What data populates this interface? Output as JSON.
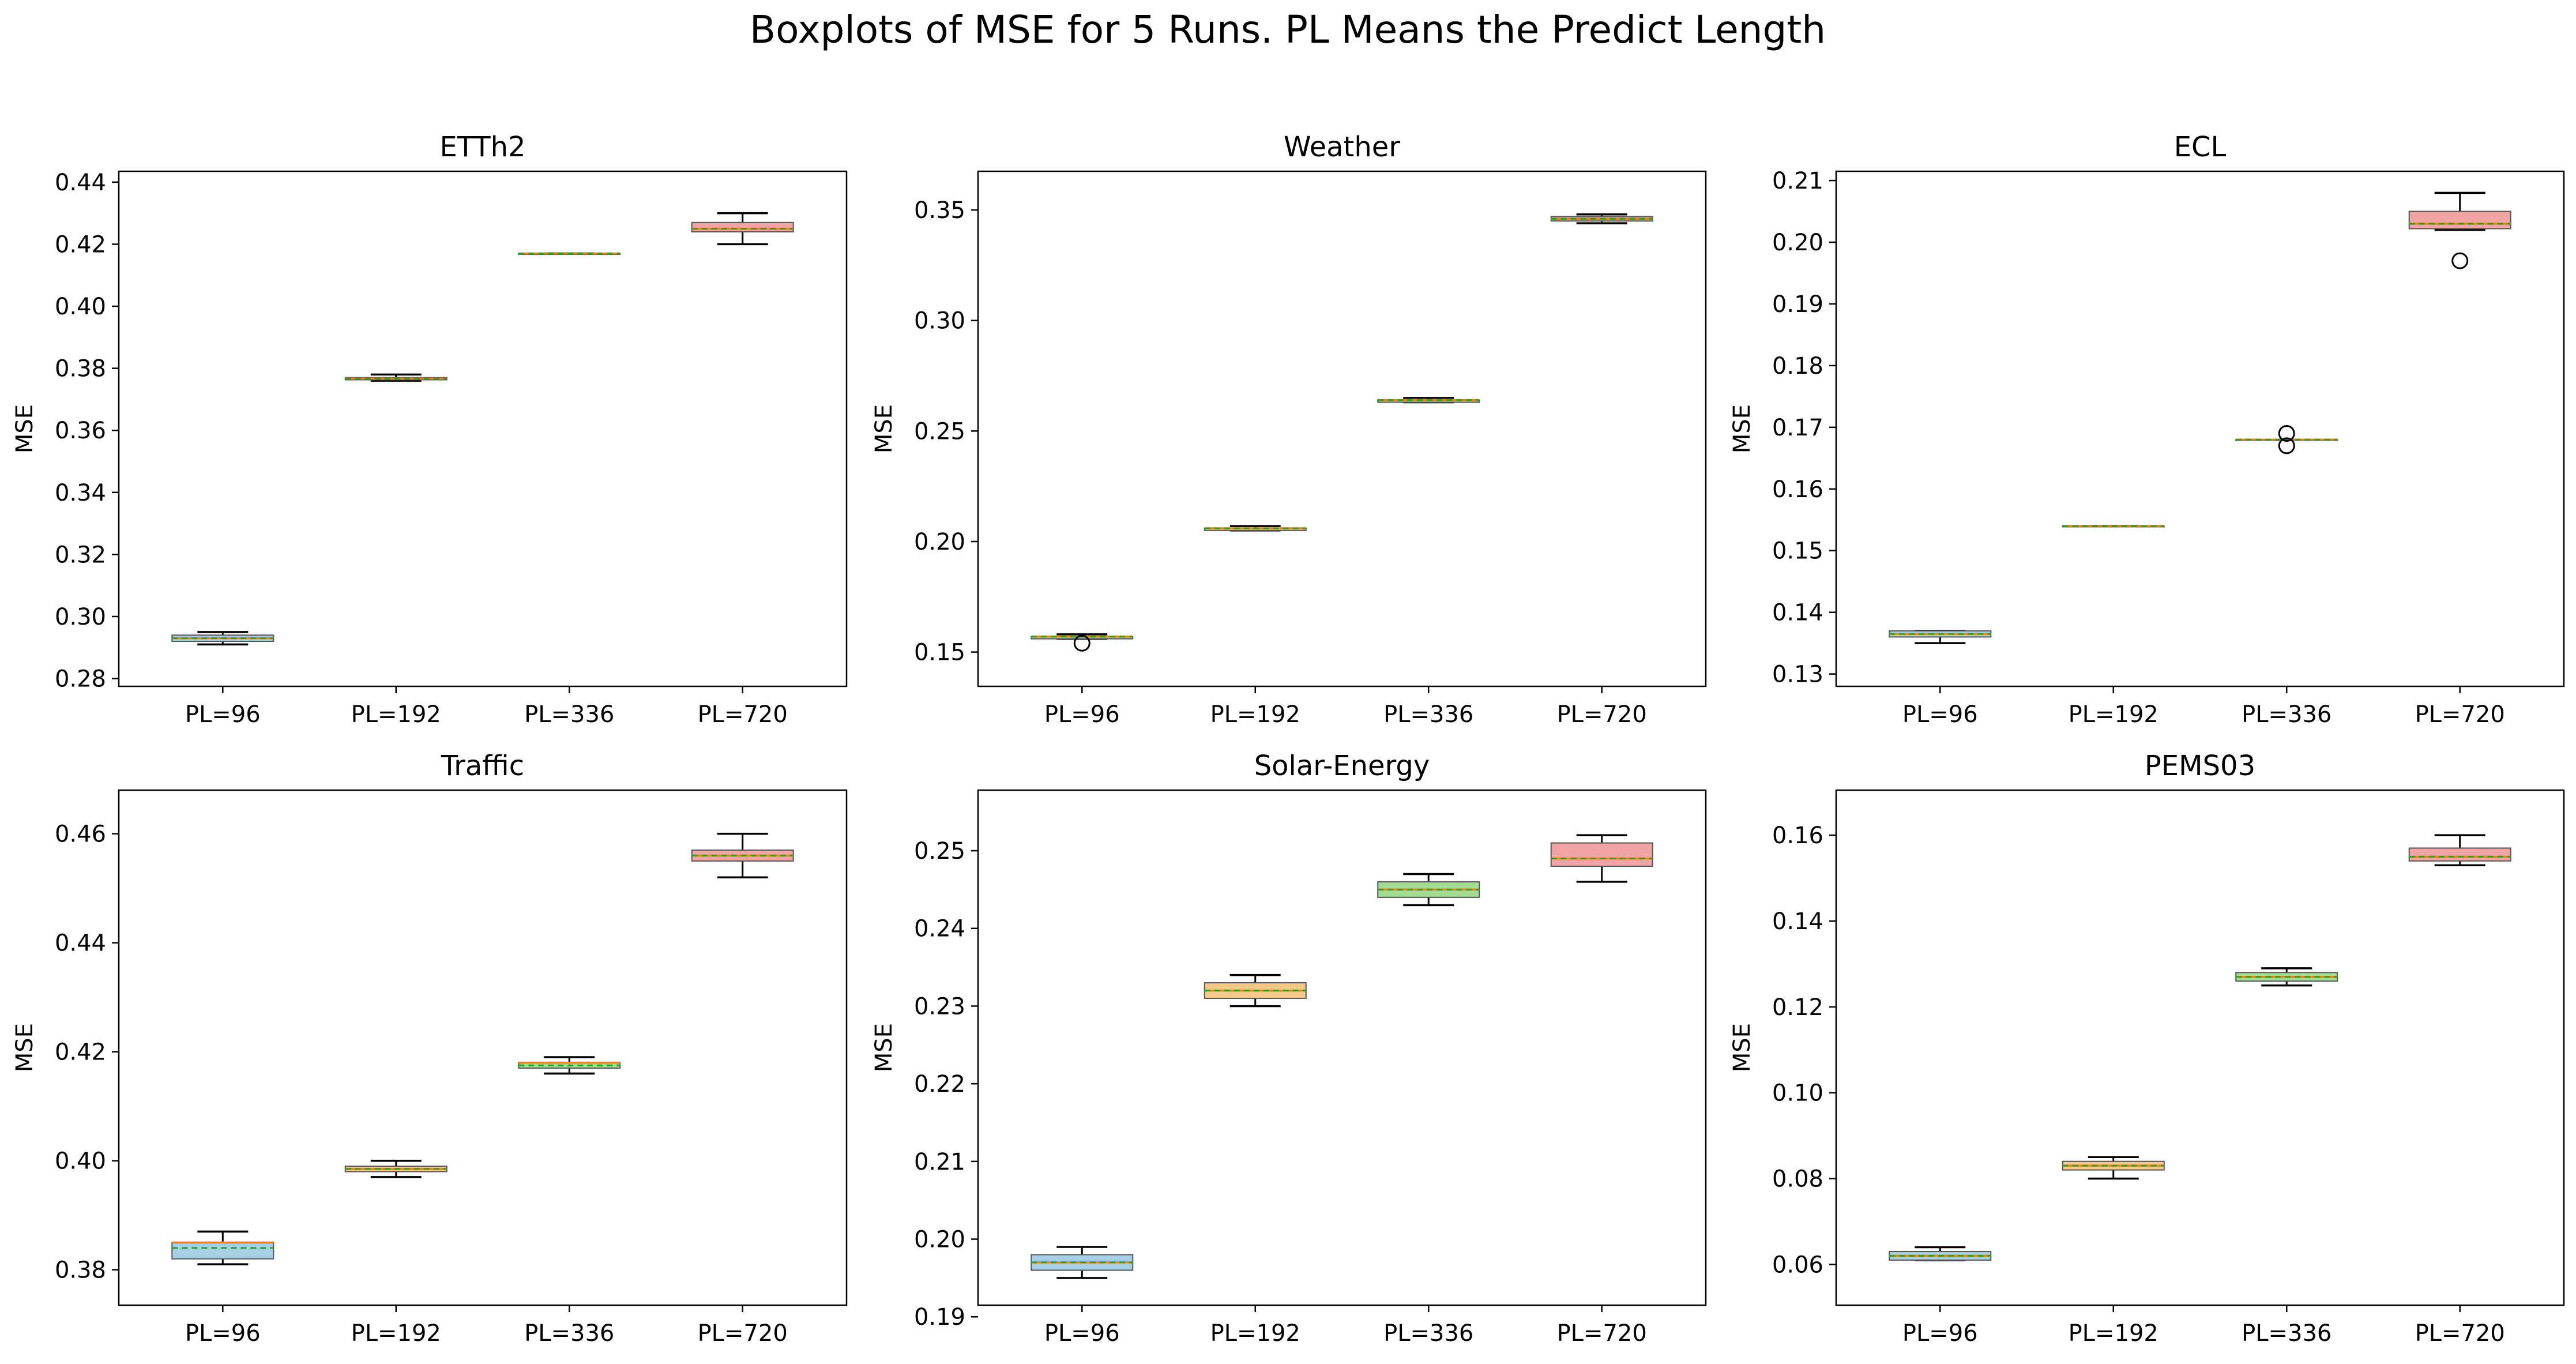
{
  "figure": {
    "title": "Boxplots of MSE for 5 Runs. PL Means the Predict Length"
  },
  "colors": {
    "box_fills": [
      "#a6d0e4",
      "#f5c98a",
      "#a3dc93",
      "#f2a3a3"
    ],
    "median_line": "#ff7f0e",
    "mean_line": "#2ca02c",
    "outlier": "#000000",
    "whisker": "#000000"
  },
  "chart_data": [
    {
      "type": "boxplot",
      "title": "ETTh2",
      "ylabel": "MSE",
      "categories": [
        "PL=96",
        "PL=192",
        "PL=336",
        "PL=720"
      ],
      "ylim": [
        0.2775,
        0.4435
      ],
      "yticks": [
        0.28,
        0.3,
        0.32,
        0.34,
        0.36,
        0.38,
        0.4,
        0.42,
        0.44
      ],
      "yticklabels": [
        "0.28",
        "0.30",
        "0.32",
        "0.34",
        "0.36",
        "0.38",
        "0.40",
        "0.42",
        "0.44"
      ],
      "boxes": [
        {
          "whislo": 0.291,
          "q1": 0.292,
          "med": 0.293,
          "mean": 0.293,
          "q3": 0.294,
          "whishi": 0.295,
          "fliers": []
        },
        {
          "whislo": 0.376,
          "q1": 0.3763,
          "med": 0.3767,
          "mean": 0.3767,
          "q3": 0.377,
          "whishi": 0.378,
          "fliers": []
        },
        {
          "whislo": 0.417,
          "q1": 0.417,
          "med": 0.417,
          "mean": 0.417,
          "q3": 0.417,
          "whishi": 0.417,
          "fliers": []
        },
        {
          "whislo": 0.42,
          "q1": 0.424,
          "med": 0.425,
          "mean": 0.425,
          "q3": 0.427,
          "whishi": 0.43,
          "fliers": []
        }
      ]
    },
    {
      "type": "boxplot",
      "title": "Weather",
      "ylabel": "MSE",
      "categories": [
        "PL=96",
        "PL=192",
        "PL=336",
        "PL=720"
      ],
      "ylim": [
        0.1345,
        0.3675
      ],
      "yticks": [
        0.15,
        0.2,
        0.25,
        0.3,
        0.35
      ],
      "yticklabels": [
        "0.15",
        "0.20",
        "0.25",
        "0.30",
        "0.35"
      ],
      "boxes": [
        {
          "whislo": 0.156,
          "q1": 0.156,
          "med": 0.157,
          "mean": 0.157,
          "q3": 0.157,
          "whishi": 0.158,
          "fliers": [
            0.154
          ]
        },
        {
          "whislo": 0.205,
          "q1": 0.205,
          "med": 0.206,
          "mean": 0.206,
          "q3": 0.206,
          "whishi": 0.207,
          "fliers": []
        },
        {
          "whislo": 0.263,
          "q1": 0.263,
          "med": 0.264,
          "mean": 0.264,
          "q3": 0.264,
          "whishi": 0.265,
          "fliers": []
        },
        {
          "whislo": 0.344,
          "q1": 0.345,
          "med": 0.346,
          "mean": 0.346,
          "q3": 0.347,
          "whishi": 0.348,
          "fliers": []
        }
      ]
    },
    {
      "type": "boxplot",
      "title": "ECL",
      "ylabel": "MSE",
      "categories": [
        "PL=96",
        "PL=192",
        "PL=336",
        "PL=720"
      ],
      "ylim": [
        0.128,
        0.2115
      ],
      "yticks": [
        0.13,
        0.14,
        0.15,
        0.16,
        0.17,
        0.18,
        0.19,
        0.2,
        0.21
      ],
      "yticklabels": [
        "0.13",
        "0.14",
        "0.15",
        "0.16",
        "0.17",
        "0.18",
        "0.19",
        "0.20",
        "0.21"
      ],
      "boxes": [
        {
          "whislo": 0.135,
          "q1": 0.136,
          "med": 0.1365,
          "mean": 0.1365,
          "q3": 0.137,
          "whishi": 0.137,
          "fliers": []
        },
        {
          "whislo": 0.154,
          "q1": 0.154,
          "med": 0.154,
          "mean": 0.154,
          "q3": 0.154,
          "whishi": 0.154,
          "fliers": []
        },
        {
          "whislo": 0.168,
          "q1": 0.168,
          "med": 0.168,
          "mean": 0.168,
          "q3": 0.168,
          "whishi": 0.168,
          "fliers": [
            0.169,
            0.167
          ]
        },
        {
          "whislo": 0.202,
          "q1": 0.2022,
          "med": 0.203,
          "mean": 0.203,
          "q3": 0.205,
          "whishi": 0.208,
          "fliers": [
            0.197
          ]
        }
      ]
    },
    {
      "type": "boxplot",
      "title": "Traffic",
      "ylabel": "MSE",
      "categories": [
        "PL=96",
        "PL=192",
        "PL=336",
        "PL=720"
      ],
      "ylim": [
        0.3735,
        0.468
      ],
      "yticks": [
        0.38,
        0.4,
        0.42,
        0.44,
        0.46
      ],
      "yticklabels": [
        "0.38",
        "0.40",
        "0.42",
        "0.44",
        "0.46"
      ],
      "boxes": [
        {
          "whislo": 0.381,
          "q1": 0.382,
          "med": 0.385,
          "mean": 0.384,
          "q3": 0.385,
          "whishi": 0.387,
          "fliers": []
        },
        {
          "whislo": 0.397,
          "q1": 0.398,
          "med": 0.3985,
          "mean": 0.3985,
          "q3": 0.399,
          "whishi": 0.4,
          "fliers": []
        },
        {
          "whislo": 0.416,
          "q1": 0.417,
          "med": 0.418,
          "mean": 0.4175,
          "q3": 0.418,
          "whishi": 0.419,
          "fliers": []
        },
        {
          "whislo": 0.452,
          "q1": 0.455,
          "med": 0.456,
          "mean": 0.456,
          "q3": 0.457,
          "whishi": 0.46,
          "fliers": []
        }
      ]
    },
    {
      "type": "boxplot",
      "title": "Solar-Energy",
      "ylabel": "MSE",
      "categories": [
        "PL=96",
        "PL=192",
        "PL=336",
        "PL=720"
      ],
      "ylim": [
        0.1915,
        0.2578
      ],
      "yticks": [
        0.19,
        0.2,
        0.21,
        0.22,
        0.23,
        0.24,
        0.25
      ],
      "yticklabels": [
        "0.19",
        "0.20",
        "0.21",
        "0.22",
        "0.23",
        "0.24",
        "0.25"
      ],
      "boxes": [
        {
          "whislo": 0.195,
          "q1": 0.196,
          "med": 0.197,
          "mean": 0.197,
          "q3": 0.198,
          "whishi": 0.199,
          "fliers": []
        },
        {
          "whislo": 0.23,
          "q1": 0.231,
          "med": 0.232,
          "mean": 0.232,
          "q3": 0.233,
          "whishi": 0.234,
          "fliers": []
        },
        {
          "whislo": 0.243,
          "q1": 0.244,
          "med": 0.245,
          "mean": 0.245,
          "q3": 0.246,
          "whishi": 0.247,
          "fliers": []
        },
        {
          "whislo": 0.246,
          "q1": 0.248,
          "med": 0.249,
          "mean": 0.249,
          "q3": 0.251,
          "whishi": 0.252,
          "fliers": []
        }
      ]
    },
    {
      "type": "boxplot",
      "title": "PEMS03",
      "ylabel": "MSE",
      "categories": [
        "PL=96",
        "PL=192",
        "PL=336",
        "PL=720"
      ],
      "ylim": [
        0.0505,
        0.1705
      ],
      "yticks": [
        0.06,
        0.08,
        0.1,
        0.12,
        0.14,
        0.16
      ],
      "yticklabels": [
        "0.06",
        "0.08",
        "0.10",
        "0.12",
        "0.14",
        "0.16"
      ],
      "boxes": [
        {
          "whislo": 0.061,
          "q1": 0.061,
          "med": 0.062,
          "mean": 0.062,
          "q3": 0.063,
          "whishi": 0.064,
          "fliers": []
        },
        {
          "whislo": 0.08,
          "q1": 0.082,
          "med": 0.083,
          "mean": 0.083,
          "q3": 0.084,
          "whishi": 0.085,
          "fliers": []
        },
        {
          "whislo": 0.125,
          "q1": 0.126,
          "med": 0.127,
          "mean": 0.127,
          "q3": 0.128,
          "whishi": 0.129,
          "fliers": []
        },
        {
          "whislo": 0.153,
          "q1": 0.154,
          "med": 0.155,
          "mean": 0.155,
          "q3": 0.157,
          "whishi": 0.16,
          "fliers": []
        }
      ]
    }
  ]
}
